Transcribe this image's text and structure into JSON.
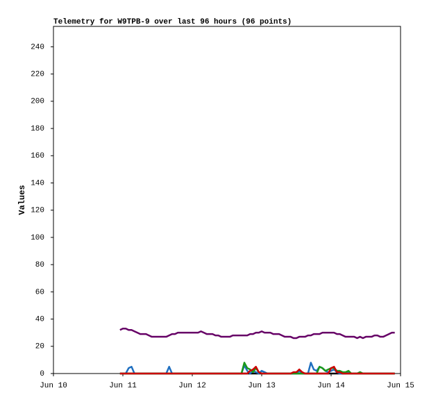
{
  "chart_data": {
    "type": "line",
    "title": "Telemetry for W9TPB-9 over last 96 hours (96 points)",
    "y_label": "Values",
    "xlim": [
      0,
      120
    ],
    "xticks": [
      {
        "value": 0,
        "label": "Jun 10"
      },
      {
        "value": 24,
        "label": "Jun 11"
      },
      {
        "value": 48,
        "label": "Jun 12"
      },
      {
        "value": 72,
        "label": "Jun 13"
      },
      {
        "value": 96,
        "label": "Jun 14"
      },
      {
        "value": 120,
        "label": "Jun 15"
      }
    ],
    "ylim": [
      0,
      255
    ],
    "yticks": [
      0,
      20,
      40,
      60,
      80,
      100,
      120,
      140,
      160,
      180,
      200,
      220,
      240
    ],
    "x": [
      23,
      24,
      25,
      26,
      27,
      28,
      29,
      30,
      31,
      32,
      33,
      34,
      35,
      36,
      37,
      38,
      39,
      40,
      41,
      42,
      43,
      44,
      45,
      46,
      47,
      48,
      49,
      50,
      51,
      52,
      53,
      54,
      55,
      56,
      57,
      58,
      59,
      60,
      61,
      62,
      63,
      64,
      65,
      66,
      67,
      68,
      69,
      70,
      71,
      72,
      73,
      74,
      75,
      76,
      77,
      78,
      79,
      80,
      81,
      82,
      83,
      84,
      85,
      86,
      87,
      88,
      89,
      90,
      91,
      92,
      93,
      94,
      95,
      96,
      97,
      98,
      99,
      100,
      101,
      102,
      103,
      104,
      105,
      106,
      107,
      108,
      109,
      110,
      111,
      112,
      113,
      114,
      115,
      116,
      117,
      118
    ],
    "series": [
      {
        "color": "#000000",
        "values": [
          0,
          0,
          0,
          0,
          0,
          0,
          0,
          0,
          0,
          0,
          0,
          0,
          0,
          0,
          0,
          0,
          0,
          0,
          0,
          0,
          0,
          0,
          0,
          0,
          0,
          0,
          0,
          0,
          0,
          0,
          0,
          0,
          0,
          0,
          0,
          0,
          0,
          0,
          0,
          0,
          0,
          0,
          0,
          0,
          0,
          0,
          0,
          0,
          0,
          0,
          0,
          0,
          0,
          0,
          0,
          0,
          0,
          0,
          0,
          0,
          0,
          0,
          0,
          0,
          0,
          0,
          0,
          0,
          0,
          0,
          0,
          0,
          0,
          0,
          0,
          0,
          0,
          0,
          0,
          0,
          0,
          0,
          0,
          0,
          0,
          0,
          0,
          0,
          0,
          0,
          0,
          0,
          0,
          0,
          0,
          0
        ]
      },
      {
        "color": "#660066",
        "values": [
          32,
          33,
          33,
          32,
          32,
          31,
          30,
          29,
          29,
          29,
          28,
          27,
          27,
          27,
          27,
          27,
          27,
          28,
          29,
          29,
          30,
          30,
          30,
          30,
          30,
          30,
          30,
          30,
          31,
          30,
          29,
          29,
          29,
          28,
          28,
          27,
          27,
          27,
          27,
          28,
          28,
          28,
          28,
          28,
          28,
          29,
          29,
          30,
          30,
          31,
          30,
          30,
          30,
          29,
          29,
          29,
          28,
          27,
          27,
          27,
          26,
          26,
          27,
          27,
          27,
          28,
          28,
          29,
          29,
          29,
          30,
          30,
          30,
          30,
          30,
          29,
          29,
          28,
          27,
          27,
          27,
          27,
          26,
          27,
          26,
          27,
          27,
          27,
          28,
          28,
          27,
          27,
          28,
          29,
          30,
          30
        ]
      },
      {
        "color": "#1f6fc0",
        "values": [
          0,
          0,
          0,
          4,
          5,
          0,
          0,
          0,
          0,
          0,
          0,
          0,
          0,
          0,
          0,
          0,
          0,
          5,
          0,
          0,
          0,
          0,
          0,
          0,
          0,
          0,
          0,
          0,
          0,
          0,
          0,
          0,
          0,
          0,
          0,
          0,
          0,
          0,
          0,
          0,
          0,
          0,
          0,
          6,
          2,
          0,
          2,
          1,
          0,
          2,
          1,
          0,
          0,
          0,
          0,
          0,
          0,
          0,
          0,
          0,
          0,
          0,
          2,
          0,
          0,
          0,
          8,
          3,
          2,
          5,
          4,
          2,
          1,
          2,
          3,
          1,
          0,
          0,
          0,
          1,
          0,
          0,
          0,
          1,
          0,
          0,
          0,
          0,
          0,
          0,
          0,
          0,
          0,
          0,
          0,
          0
        ]
      },
      {
        "color": "#1a9a1a",
        "values": [
          0,
          0,
          0,
          0,
          0,
          0,
          0,
          0,
          0,
          0,
          0,
          0,
          0,
          0,
          0,
          0,
          0,
          0,
          0,
          0,
          0,
          0,
          0,
          0,
          0,
          0,
          0,
          0,
          0,
          0,
          0,
          0,
          0,
          0,
          0,
          0,
          0,
          0,
          0,
          0,
          0,
          0,
          0,
          8,
          4,
          3,
          1,
          4,
          1,
          0,
          0,
          0,
          0,
          0,
          0,
          0,
          0,
          0,
          0,
          0,
          0,
          0,
          0,
          0,
          0,
          0,
          0,
          0,
          0,
          5,
          4,
          2,
          3,
          4,
          4,
          2,
          2,
          1,
          1,
          2,
          0,
          0,
          0,
          1,
          0,
          0,
          0,
          0,
          0,
          0,
          0,
          0,
          0,
          0,
          0,
          0
        ]
      },
      {
        "color": "#cc0000",
        "values": [
          0,
          0,
          0,
          0,
          0,
          0,
          0,
          0,
          0,
          0,
          0,
          0,
          0,
          0,
          0,
          0,
          0,
          0,
          0,
          0,
          0,
          0,
          0,
          0,
          0,
          0,
          0,
          0,
          0,
          0,
          0,
          0,
          0,
          0,
          0,
          0,
          0,
          0,
          0,
          0,
          0,
          0,
          0,
          0,
          0,
          2,
          3,
          5,
          1,
          0,
          0,
          0,
          0,
          0,
          0,
          0,
          0,
          0,
          0,
          0,
          1,
          1,
          3,
          1,
          0,
          0,
          0,
          0,
          0,
          0,
          0,
          0,
          0,
          4,
          5,
          1,
          1,
          0,
          0,
          0,
          0,
          0,
          0,
          0,
          0,
          0,
          0,
          0,
          0,
          0,
          0,
          0,
          0,
          0,
          0,
          0
        ]
      }
    ]
  }
}
